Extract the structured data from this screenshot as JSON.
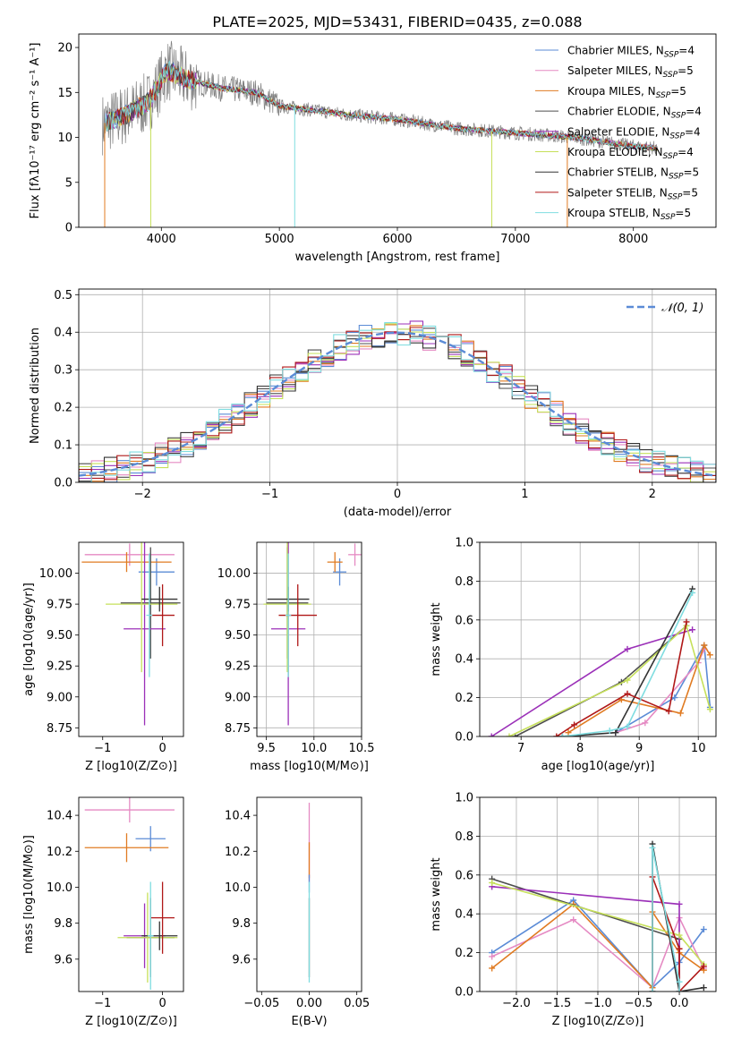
{
  "figure": {
    "title": "PLATE=2025, MJD=53431, FIBERID=0435, z=0.088"
  },
  "colors": {
    "Chabrier MILES": "#5b8bd6",
    "Salpeter MILES": "#e58ac3",
    "Kroupa MILES": "#e07b22",
    "Chabrier ELODIE": "#4d4d4d",
    "Salpeter ELODIE": "#9b30b8",
    "Kroupa ELODIE": "#c6e05a",
    "Chabrier STELIB": "#333333",
    "Salpeter STELIB": "#b01818",
    "Kroupa STELIB": "#7fdde0"
  },
  "chart_data": [
    {
      "id": "spectrum",
      "type": "line",
      "title": "PLATE=2025, MJD=53431, FIBERID=0435, z=0.088",
      "xlabel": "wavelength [Angstrom, rest frame]",
      "ylabel": "Flux [fλ10⁻¹⁷ erg cm⁻² s⁻¹ A⁻¹]",
      "xlim": [
        3300,
        8700
      ],
      "ylim": [
        0,
        21.5
      ],
      "xticks": [
        4000,
        5000,
        6000,
        7000,
        8000
      ],
      "yticks": [
        0,
        5,
        10,
        15,
        20
      ],
      "legend_position": "top-right",
      "legend": [
        "Chabrier MILES, NSSP=4",
        "Salpeter MILES, NSSP=5",
        "Kroupa MILES, NSSP=5",
        "Chabrier ELODIE, NSSP=4",
        "Salpeter ELODIE, NSSP=4",
        "Kroupa ELODIE, NSSP=4",
        "Chabrier STELIB, NSSP=5",
        "Salpeter STELIB, NSSP=5",
        "Kroupa STELIB, NSSP=5"
      ],
      "continuum": [
        [
          3500,
          11.5
        ],
        [
          3700,
          12.5
        ],
        [
          3900,
          14.0
        ],
        [
          4050,
          17.5
        ],
        [
          4200,
          16.5
        ],
        [
          4500,
          15.5
        ],
        [
          4800,
          15.0
        ],
        [
          5000,
          13.5
        ],
        [
          5300,
          13.0
        ],
        [
          5600,
          12.5
        ],
        [
          6000,
          12.0
        ],
        [
          6500,
          11.0
        ],
        [
          7000,
          10.5
        ],
        [
          7500,
          10.0
        ],
        [
          8000,
          9.0
        ],
        [
          8200,
          8.8
        ]
      ]
    },
    {
      "id": "residuals",
      "type": "line",
      "xlabel": "(data-model)/error",
      "ylabel": "Normed distribution",
      "xlim": [
        -2.5,
        2.5
      ],
      "ylim": [
        0,
        0.515
      ],
      "xticks": [
        -2,
        -1,
        0,
        1,
        2
      ],
      "yticks": [
        0.0,
        0.1,
        0.2,
        0.3,
        0.4,
        0.5
      ],
      "grid": true,
      "legend": [
        "𝒩(0, 1)"
      ],
      "legend_position": "top-right"
    },
    {
      "id": "age-vs-Z",
      "type": "scatter",
      "xlabel": "Z [log10(Z/Z⊙)]",
      "ylabel": "age [log10(age/yr)]",
      "xlim": [
        -1.4,
        0.35
      ],
      "ylim": [
        8.68,
        10.25
      ],
      "xticks": [
        -1,
        0
      ],
      "yticks": [
        8.75,
        9.0,
        9.25,
        9.5,
        9.75,
        10.0
      ],
      "points": [
        {
          "model": "Chabrier MILES",
          "x": -0.1,
          "y": 10.01,
          "xerr": 0.3,
          "yerr": 0.11
        },
        {
          "model": "Salpeter MILES",
          "x": -0.55,
          "y": 10.15,
          "xerr": 0.75,
          "yerr": 0.09
        },
        {
          "model": "Kroupa MILES",
          "x": -0.6,
          "y": 10.09,
          "xerr": 0.75,
          "yerr": 0.08
        },
        {
          "model": "Chabrier ELODIE",
          "x": -0.2,
          "y": 9.76,
          "xerr": 0.5,
          "yerr": 0.45
        },
        {
          "model": "Salpeter ELODIE",
          "x": -0.3,
          "y": 9.55,
          "xerr": 0.35,
          "yerr": 0.78
        },
        {
          "model": "Kroupa ELODIE",
          "x": -0.35,
          "y": 9.75,
          "xerr": 0.6,
          "yerr": 0.55
        },
        {
          "model": "Chabrier STELIB",
          "x": -0.05,
          "y": 9.79,
          "xerr": 0.3,
          "yerr": 0.1
        },
        {
          "model": "Salpeter STELIB",
          "x": 0.0,
          "y": 9.66,
          "xerr": 0.2,
          "yerr": 0.25
        },
        {
          "model": "Kroupa STELIB",
          "x": -0.22,
          "y": 9.66,
          "xerr": 0.05,
          "yerr": 0.5
        }
      ]
    },
    {
      "id": "age-vs-mass",
      "type": "scatter",
      "xlabel": "mass [log10(M/M⊙)]",
      "ylabel": "",
      "xlim": [
        9.4,
        10.5
      ],
      "ylim": [
        8.68,
        10.25
      ],
      "xticks": [
        9.5,
        10.0,
        10.5
      ],
      "yticks": [
        8.75,
        9.0,
        9.25,
        9.5,
        9.75,
        10.0
      ],
      "grid": true,
      "points": [
        {
          "model": "Chabrier MILES",
          "x": 10.27,
          "y": 10.01,
          "xerr": 0.07,
          "yerr": 0.11
        },
        {
          "model": "Salpeter MILES",
          "x": 10.43,
          "y": 10.15,
          "xerr": 0.07,
          "yerr": 0.09
        },
        {
          "model": "Kroupa MILES",
          "x": 10.22,
          "y": 10.09,
          "xerr": 0.08,
          "yerr": 0.08
        },
        {
          "model": "Chabrier ELODIE",
          "x": 9.72,
          "y": 9.76,
          "xerr": 0.22,
          "yerr": 0.45
        },
        {
          "model": "Salpeter ELODIE",
          "x": 9.73,
          "y": 9.55,
          "xerr": 0.18,
          "yerr": 0.78
        },
        {
          "model": "Kroupa ELODIE",
          "x": 9.72,
          "y": 9.75,
          "xerr": 0.25,
          "yerr": 0.55
        },
        {
          "model": "Chabrier STELIB",
          "x": 9.73,
          "y": 9.79,
          "xerr": 0.22,
          "yerr": 0.1
        },
        {
          "model": "Salpeter STELIB",
          "x": 9.83,
          "y": 9.66,
          "xerr": 0.2,
          "yerr": 0.25
        },
        {
          "model": "Kroupa STELIB",
          "x": 9.73,
          "y": 9.66,
          "xerr": 0.03,
          "yerr": 0.5
        }
      ]
    },
    {
      "id": "weight-vs-age",
      "type": "line",
      "xlabel": "age [log10(age/yr)]",
      "ylabel": "mass weight",
      "xlim": [
        6.3,
        10.3
      ],
      "ylim": [
        0,
        1.0
      ],
      "xticks": [
        7,
        8,
        9,
        10
      ],
      "yticks": [
        0.0,
        0.2,
        0.4,
        0.6,
        0.8,
        1.0
      ],
      "grid": true,
      "series": [
        {
          "model": "Chabrier MILES",
          "x": [
            8.6,
            9.6,
            10.1,
            10.2
          ],
          "y": [
            0.02,
            0.2,
            0.47,
            0.15
          ]
        },
        {
          "model": "Salpeter MILES",
          "x": [
            8.6,
            9.1,
            10.0,
            10.1
          ],
          "y": [
            0.02,
            0.07,
            0.38,
            0.45
          ]
        },
        {
          "model": "Kroupa MILES",
          "x": [
            7.8,
            8.7,
            9.7,
            10.1,
            10.2
          ],
          "y": [
            0.02,
            0.19,
            0.12,
            0.47,
            0.42
          ]
        },
        {
          "model": "Chabrier ELODIE",
          "x": [
            6.9,
            8.7,
            9.8
          ],
          "y": [
            0.0,
            0.28,
            0.57
          ]
        },
        {
          "model": "Salpeter ELODIE",
          "x": [
            6.5,
            8.8,
            9.9
          ],
          "y": [
            0.0,
            0.45,
            0.55
          ]
        },
        {
          "model": "Kroupa ELODIE",
          "x": [
            6.8,
            8.8,
            9.8,
            10.2
          ],
          "y": [
            0.0,
            0.29,
            0.57,
            0.14
          ]
        },
        {
          "model": "Chabrier STELIB",
          "x": [
            7.7,
            8.6,
            9.9
          ],
          "y": [
            0.0,
            0.02,
            0.76
          ]
        },
        {
          "model": "Salpeter STELIB",
          "x": [
            7.6,
            7.9,
            8.8,
            9.5,
            9.8
          ],
          "y": [
            0.0,
            0.06,
            0.22,
            0.13,
            0.59
          ]
        },
        {
          "model": "Kroupa STELIB",
          "x": [
            7.7,
            8.5,
            8.8,
            9.9
          ],
          "y": [
            0.0,
            0.03,
            0.05,
            0.74
          ]
        }
      ]
    },
    {
      "id": "mass-vs-Z",
      "type": "scatter",
      "xlabel": "Z [log10(Z/Z⊙)]",
      "ylabel": "mass [log10(M/M⊙)]",
      "xlim": [
        -1.4,
        0.35
      ],
      "ylim": [
        9.42,
        10.5
      ],
      "xticks": [
        -1,
        0
      ],
      "yticks": [
        9.6,
        9.8,
        10.0,
        10.2,
        10.4
      ],
      "points": [
        {
          "model": "Chabrier MILES",
          "x": -0.2,
          "y": 10.27,
          "xerr": 0.25,
          "yerr": 0.07
        },
        {
          "model": "Salpeter MILES",
          "x": -0.55,
          "y": 10.43,
          "xerr": 0.75,
          "yerr": 0.07
        },
        {
          "model": "Kroupa MILES",
          "x": -0.6,
          "y": 10.22,
          "xerr": 0.7,
          "yerr": 0.08
        },
        {
          "model": "Chabrier ELODIE",
          "x": -0.2,
          "y": 9.72,
          "xerr": 0.4,
          "yerr": 0.22
        },
        {
          "model": "Salpeter ELODIE",
          "x": -0.3,
          "y": 9.73,
          "xerr": 0.35,
          "yerr": 0.18
        },
        {
          "model": "Kroupa ELODIE",
          "x": -0.25,
          "y": 9.72,
          "xerr": 0.5,
          "yerr": 0.25
        },
        {
          "model": "Chabrier STELIB",
          "x": -0.05,
          "y": 9.73,
          "xerr": 0.3,
          "yerr": 0.08
        },
        {
          "model": "Salpeter STELIB",
          "x": 0.0,
          "y": 9.83,
          "xerr": 0.2,
          "yerr": 0.2
        },
        {
          "model": "Kroupa STELIB",
          "x": -0.2,
          "y": 9.73,
          "xerr": 0.05,
          "yerr": 0.3
        }
      ]
    },
    {
      "id": "mass-vs-EBV",
      "type": "scatter",
      "xlabel": "E(B-V)",
      "ylabel": "",
      "xlim": [
        -0.055,
        0.055
      ],
      "ylim": [
        9.42,
        10.5
      ],
      "xticks": [
        -0.05,
        0.0,
        0.05
      ],
      "yticks": [
        9.6,
        9.8,
        10.0,
        10.2,
        10.4
      ],
      "points": [
        {
          "model": "Salpeter MILES",
          "x": 0.0,
          "y": 10.25,
          "xerr": 0.0,
          "yerr": 0.22
        },
        {
          "model": "Kroupa MILES",
          "x": 0.0,
          "y": 10.15,
          "xerr": 0.0,
          "yerr": 0.1
        },
        {
          "model": "Chabrier MILES",
          "x": 0.0,
          "y": 10.02,
          "xerr": 0.0,
          "yerr": 0.05
        },
        {
          "model": "Chabrier ELODIE",
          "x": 0.0,
          "y": 9.72,
          "xerr": 0.0,
          "yerr": 0.22
        },
        {
          "model": "Kroupa STELIB",
          "x": 0.0,
          "y": 9.75,
          "xerr": 0.0,
          "yerr": 0.28
        }
      ]
    },
    {
      "id": "weight-vs-Z",
      "type": "line",
      "xlabel": "Z [log10(Z/Z⊙)]",
      "ylabel": "mass weight",
      "xlim": [
        -2.45,
        0.45
      ],
      "ylim": [
        0,
        1.0
      ],
      "xticks": [
        -2.0,
        -1.5,
        -1.0,
        -0.5,
        0.0
      ],
      "yticks": [
        0.0,
        0.2,
        0.4,
        0.6,
        0.8,
        1.0
      ],
      "grid": true,
      "series": [
        {
          "model": "Chabrier MILES",
          "x": [
            -2.3,
            -1.3,
            -0.33,
            0.0,
            0.3
          ],
          "y": [
            0.2,
            0.47,
            0.02,
            0.15,
            0.32
          ]
        },
        {
          "model": "Salpeter MILES",
          "x": [
            -2.3,
            -1.3,
            -0.33,
            0.0,
            0.3
          ],
          "y": [
            0.18,
            0.37,
            0.02,
            0.38,
            0.12
          ]
        },
        {
          "model": "Kroupa MILES",
          "x": [
            -2.3,
            -1.3,
            -0.33,
            -0.33,
            0.0,
            0.3
          ],
          "y": [
            0.12,
            0.45,
            0.02,
            0.41,
            0.2,
            0.11
          ]
        },
        {
          "model": "Chabrier ELODIE",
          "x": [
            -2.3,
            0.0,
            0.0
          ],
          "y": [
            0.58,
            0.27,
            0.0
          ]
        },
        {
          "model": "Salpeter ELODIE",
          "x": [
            -2.3,
            0.0,
            0.0
          ],
          "y": [
            0.54,
            0.45,
            0.0
          ]
        },
        {
          "model": "Kroupa ELODIE",
          "x": [
            -2.3,
            0.0,
            0.3
          ],
          "y": [
            0.56,
            0.29,
            0.14
          ]
        },
        {
          "model": "Chabrier STELIB",
          "x": [
            -0.33,
            -0.33,
            0.0,
            0.3
          ],
          "y": [
            0.0,
            0.76,
            0.0,
            0.02
          ]
        },
        {
          "model": "Salpeter STELIB",
          "x": [
            -0.33,
            -0.33,
            0.0,
            0.0,
            0.3
          ],
          "y": [
            0.0,
            0.59,
            0.22,
            0.0,
            0.13
          ]
        },
        {
          "model": "Kroupa STELIB",
          "x": [
            -0.33,
            -0.33,
            0.0,
            0.0
          ],
          "y": [
            0.0,
            0.74,
            0.05,
            0.0
          ]
        }
      ]
    }
  ]
}
